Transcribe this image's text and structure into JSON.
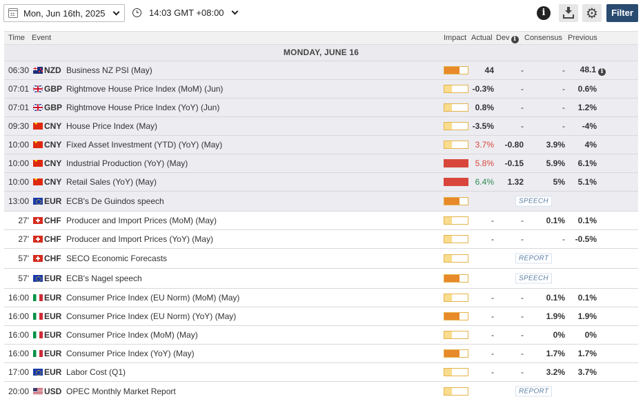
{
  "toolbar": {
    "date": "Mon, Jun 16th, 2025",
    "time": "14:03 GMT +08:00",
    "info_label": "i",
    "gear_glyph": "⚙",
    "filter_label": "Filter",
    "icons": [
      "calendar-icon",
      "chevron-down-icon",
      "clock-icon",
      "info-icon",
      "download-icon",
      "gear-icon"
    ]
  },
  "headers": {
    "time": "Time",
    "event": "Event",
    "impact": "Impact",
    "actual": "Actual",
    "dev": "Dev",
    "dev_info": "i",
    "consensus": "Consensus",
    "previous": "Previous"
  },
  "day_label": "MONDAY, JUNE 16",
  "impact_levels": {
    "low": 0.33,
    "medium": 0.66,
    "high": 1.0
  },
  "colors": {
    "impact_low": "#f9dc8e",
    "impact_medium": "#e8892a",
    "impact_high": "#d9473c",
    "actual_negative": "#d9473c",
    "actual_positive": "#2f8a4f",
    "filter_button": "#2a4b70"
  },
  "events": [
    {
      "time": "06:30",
      "ccy": "NZD",
      "flag": "nzd",
      "event": "Business NZ PSI (May)",
      "impact": "medium",
      "actual": "44",
      "dev": "-",
      "cons": "-",
      "prev": "48.1",
      "prev_info": "i"
    },
    {
      "time": "07:01",
      "ccy": "GBP",
      "flag": "gbp",
      "event": "Rightmove House Price Index (MoM) (Jun)",
      "impact": "low",
      "actual": "-0.3%",
      "dev": "-",
      "cons": "-",
      "prev": "0.6%"
    },
    {
      "time": "07:01",
      "ccy": "GBP",
      "flag": "gbp",
      "event": "Rightmove House Price Index (YoY) (Jun)",
      "impact": "low",
      "actual": "0.8%",
      "dev": "-",
      "cons": "-",
      "prev": "1.2%"
    },
    {
      "time": "09:30",
      "ccy": "CNY",
      "flag": "cny",
      "event": "House Price Index (May)",
      "impact": "low",
      "actual": "-3.5%",
      "dev": "-",
      "cons": "-",
      "prev": "-4%"
    },
    {
      "time": "10:00",
      "ccy": "CNY",
      "flag": "cny",
      "event": "Fixed Asset Investment (YTD) (YoY) (May)",
      "impact": "low",
      "actual": "3.7%",
      "actual_tone": "neg",
      "dev": "-0.80",
      "cons": "3.9%",
      "prev": "4%"
    },
    {
      "time": "10:00",
      "ccy": "CNY",
      "flag": "cny",
      "event": "Industrial Production (YoY) (May)",
      "impact": "high",
      "actual": "5.8%",
      "actual_tone": "neg",
      "dev": "-0.15",
      "cons": "5.9%",
      "prev": "6.1%"
    },
    {
      "time": "10:00",
      "ccy": "CNY",
      "flag": "cny",
      "event": "Retail Sales (YoY) (May)",
      "impact": "high",
      "actual": "6.4%",
      "actual_tone": "pos",
      "dev": "1.32",
      "cons": "5%",
      "prev": "5.1%"
    },
    {
      "time": "13:00",
      "ccy": "EUR",
      "flag": "eur",
      "event": "ECB's De Guindos speech",
      "impact": "medium",
      "tag": "SPEECH"
    },
    {
      "time": "27'",
      "ccy": "CHF",
      "flag": "chf",
      "event": "Producer and Import Prices (MoM) (May)",
      "impact": "low",
      "actual": "-",
      "dev": "-",
      "cons": "0.1%",
      "prev": "0.1%"
    },
    {
      "time": "27'",
      "ccy": "CHF",
      "flag": "chf",
      "event": "Producer and Import Prices (YoY) (May)",
      "impact": "low",
      "actual": "-",
      "dev": "-",
      "cons": "-",
      "prev": "-0.5%"
    },
    {
      "time": "57'",
      "ccy": "CHF",
      "flag": "chf",
      "event": "SECO Economic Forecasts",
      "impact": "low",
      "tag": "REPORT"
    },
    {
      "time": "57'",
      "ccy": "EUR",
      "flag": "eur",
      "event": "ECB's Nagel speech",
      "impact": "medium",
      "tag": "SPEECH"
    },
    {
      "time": "16:00",
      "ccy": "EUR",
      "flag": "ita",
      "event": "Consumer Price Index (EU Norm) (MoM) (May)",
      "impact": "low",
      "actual": "-",
      "dev": "-",
      "cons": "0.1%",
      "prev": "0.1%"
    },
    {
      "time": "16:00",
      "ccy": "EUR",
      "flag": "ita",
      "event": "Consumer Price Index (EU Norm) (YoY) (May)",
      "impact": "medium",
      "actual": "-",
      "dev": "-",
      "cons": "1.9%",
      "prev": "1.9%"
    },
    {
      "time": "16:00",
      "ccy": "EUR",
      "flag": "ita",
      "event": "Consumer Price Index (MoM) (May)",
      "impact": "low",
      "actual": "-",
      "dev": "-",
      "cons": "0%",
      "prev": "0%"
    },
    {
      "time": "16:00",
      "ccy": "EUR",
      "flag": "ita",
      "event": "Consumer Price Index (YoY) (May)",
      "impact": "medium",
      "actual": "-",
      "dev": "-",
      "cons": "1.7%",
      "prev": "1.7%"
    },
    {
      "time": "17:00",
      "ccy": "EUR",
      "flag": "eur",
      "event": "Labor Cost (Q1)",
      "impact": "low",
      "actual": "-",
      "dev": "-",
      "cons": "3.2%",
      "prev": "3.7%"
    },
    {
      "time": "20:00",
      "ccy": "USD",
      "flag": "usd",
      "event": "OPEC Monthly Market Report",
      "impact": "low",
      "tag": "REPORT"
    }
  ]
}
